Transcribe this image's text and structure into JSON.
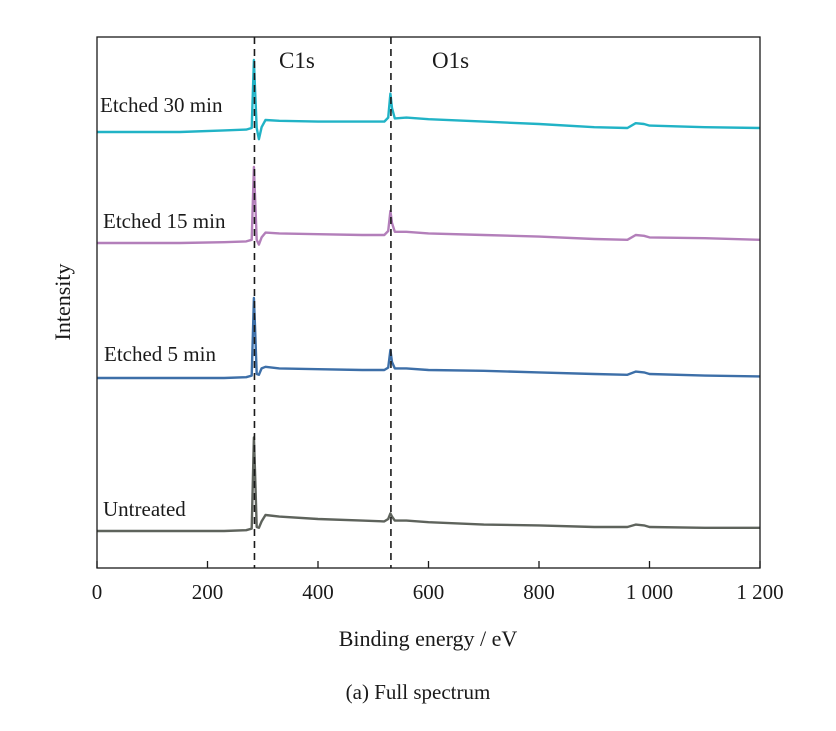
{
  "chart_data": {
    "type": "line",
    "caption": "(a) Full spectrum",
    "xlabel": "Binding energy / eV",
    "ylabel": "Intensity",
    "xlim": [
      0,
      1200
    ],
    "xticks": [
      {
        "value": 0,
        "label": "0"
      },
      {
        "value": 200,
        "label": "200"
      },
      {
        "value": 400,
        "label": "400"
      },
      {
        "value": 600,
        "label": "600"
      },
      {
        "value": 800,
        "label": "800"
      },
      {
        "value": 1000,
        "label": "1 000"
      },
      {
        "value": 1200,
        "label": "1 200"
      }
    ],
    "y_ticks_shown": false,
    "grid": false,
    "reference_lines": [
      {
        "label": "C1s",
        "x": 285,
        "style": "dashed"
      },
      {
        "label": "O1s",
        "x": 532,
        "style": "dashed"
      }
    ],
    "series": [
      {
        "name": "Etched 30 min",
        "color": "#21b3c6",
        "offset": 3,
        "points": [
          [
            0,
            0.0
          ],
          [
            150,
            0.0
          ],
          [
            230,
            0.02
          ],
          [
            270,
            0.03
          ],
          [
            280,
            0.05
          ],
          [
            284,
            0.9
          ],
          [
            286,
            0.55
          ],
          [
            289,
            0.05
          ],
          [
            293,
            -0.09
          ],
          [
            298,
            0.06
          ],
          [
            305,
            0.15
          ],
          [
            330,
            0.14
          ],
          [
            400,
            0.13
          ],
          [
            480,
            0.13
          ],
          [
            520,
            0.13
          ],
          [
            527,
            0.18
          ],
          [
            531,
            0.48
          ],
          [
            534,
            0.3
          ],
          [
            539,
            0.17
          ],
          [
            560,
            0.18
          ],
          [
            600,
            0.16
          ],
          [
            700,
            0.13
          ],
          [
            800,
            0.1
          ],
          [
            900,
            0.06
          ],
          [
            960,
            0.05
          ],
          [
            975,
            0.11
          ],
          [
            990,
            0.1
          ],
          [
            1000,
            0.08
          ],
          [
            1100,
            0.06
          ],
          [
            1200,
            0.05
          ]
        ]
      },
      {
        "name": "Etched 15 min",
        "color": "#b37fba",
        "offset": 2,
        "points": [
          [
            0,
            0.0
          ],
          [
            150,
            0.0
          ],
          [
            230,
            0.01
          ],
          [
            270,
            0.02
          ],
          [
            280,
            0.04
          ],
          [
            284,
            0.95
          ],
          [
            286,
            0.6
          ],
          [
            289,
            0.04
          ],
          [
            293,
            -0.02
          ],
          [
            298,
            0.07
          ],
          [
            305,
            0.13
          ],
          [
            330,
            0.12
          ],
          [
            400,
            0.11
          ],
          [
            480,
            0.1
          ],
          [
            520,
            0.1
          ],
          [
            527,
            0.15
          ],
          [
            531,
            0.4
          ],
          [
            534,
            0.25
          ],
          [
            539,
            0.14
          ],
          [
            560,
            0.14
          ],
          [
            600,
            0.12
          ],
          [
            700,
            0.1
          ],
          [
            800,
            0.08
          ],
          [
            900,
            0.05
          ],
          [
            960,
            0.04
          ],
          [
            975,
            0.1
          ],
          [
            990,
            0.09
          ],
          [
            1000,
            0.07
          ],
          [
            1100,
            0.06
          ],
          [
            1200,
            0.04
          ]
        ]
      },
      {
        "name": "Etched 5 min",
        "color": "#3d6fa8",
        "offset": 1,
        "points": [
          [
            0,
            0.0
          ],
          [
            150,
            0.0
          ],
          [
            230,
            0.0
          ],
          [
            270,
            0.01
          ],
          [
            280,
            0.03
          ],
          [
            284,
            1.0
          ],
          [
            286,
            0.65
          ],
          [
            289,
            0.05
          ],
          [
            293,
            0.04
          ],
          [
            298,
            0.12
          ],
          [
            305,
            0.14
          ],
          [
            330,
            0.12
          ],
          [
            400,
            0.11
          ],
          [
            480,
            0.1
          ],
          [
            520,
            0.1
          ],
          [
            527,
            0.13
          ],
          [
            531,
            0.35
          ],
          [
            534,
            0.2
          ],
          [
            539,
            0.12
          ],
          [
            560,
            0.12
          ],
          [
            600,
            0.1
          ],
          [
            700,
            0.09
          ],
          [
            800,
            0.07
          ],
          [
            900,
            0.05
          ],
          [
            960,
            0.04
          ],
          [
            975,
            0.08
          ],
          [
            990,
            0.07
          ],
          [
            1000,
            0.05
          ],
          [
            1100,
            0.03
          ],
          [
            1200,
            0.02
          ]
        ]
      },
      {
        "name": "Untreated",
        "color": "#5e635c",
        "offset": 0,
        "points": [
          [
            0,
            0.0
          ],
          [
            150,
            0.0
          ],
          [
            230,
            0.0
          ],
          [
            270,
            0.01
          ],
          [
            280,
            0.03
          ],
          [
            284,
            1.17
          ],
          [
            286,
            0.75
          ],
          [
            289,
            0.05
          ],
          [
            293,
            0.04
          ],
          [
            298,
            0.12
          ],
          [
            305,
            0.2
          ],
          [
            330,
            0.18
          ],
          [
            400,
            0.15
          ],
          [
            480,
            0.13
          ],
          [
            520,
            0.12
          ],
          [
            527,
            0.15
          ],
          [
            531,
            0.22
          ],
          [
            534,
            0.18
          ],
          [
            539,
            0.13
          ],
          [
            560,
            0.13
          ],
          [
            600,
            0.11
          ],
          [
            700,
            0.08
          ],
          [
            800,
            0.07
          ],
          [
            900,
            0.05
          ],
          [
            960,
            0.05
          ],
          [
            975,
            0.08
          ],
          [
            990,
            0.07
          ],
          [
            1000,
            0.05
          ],
          [
            1100,
            0.04
          ],
          [
            1200,
            0.04
          ]
        ]
      }
    ]
  }
}
